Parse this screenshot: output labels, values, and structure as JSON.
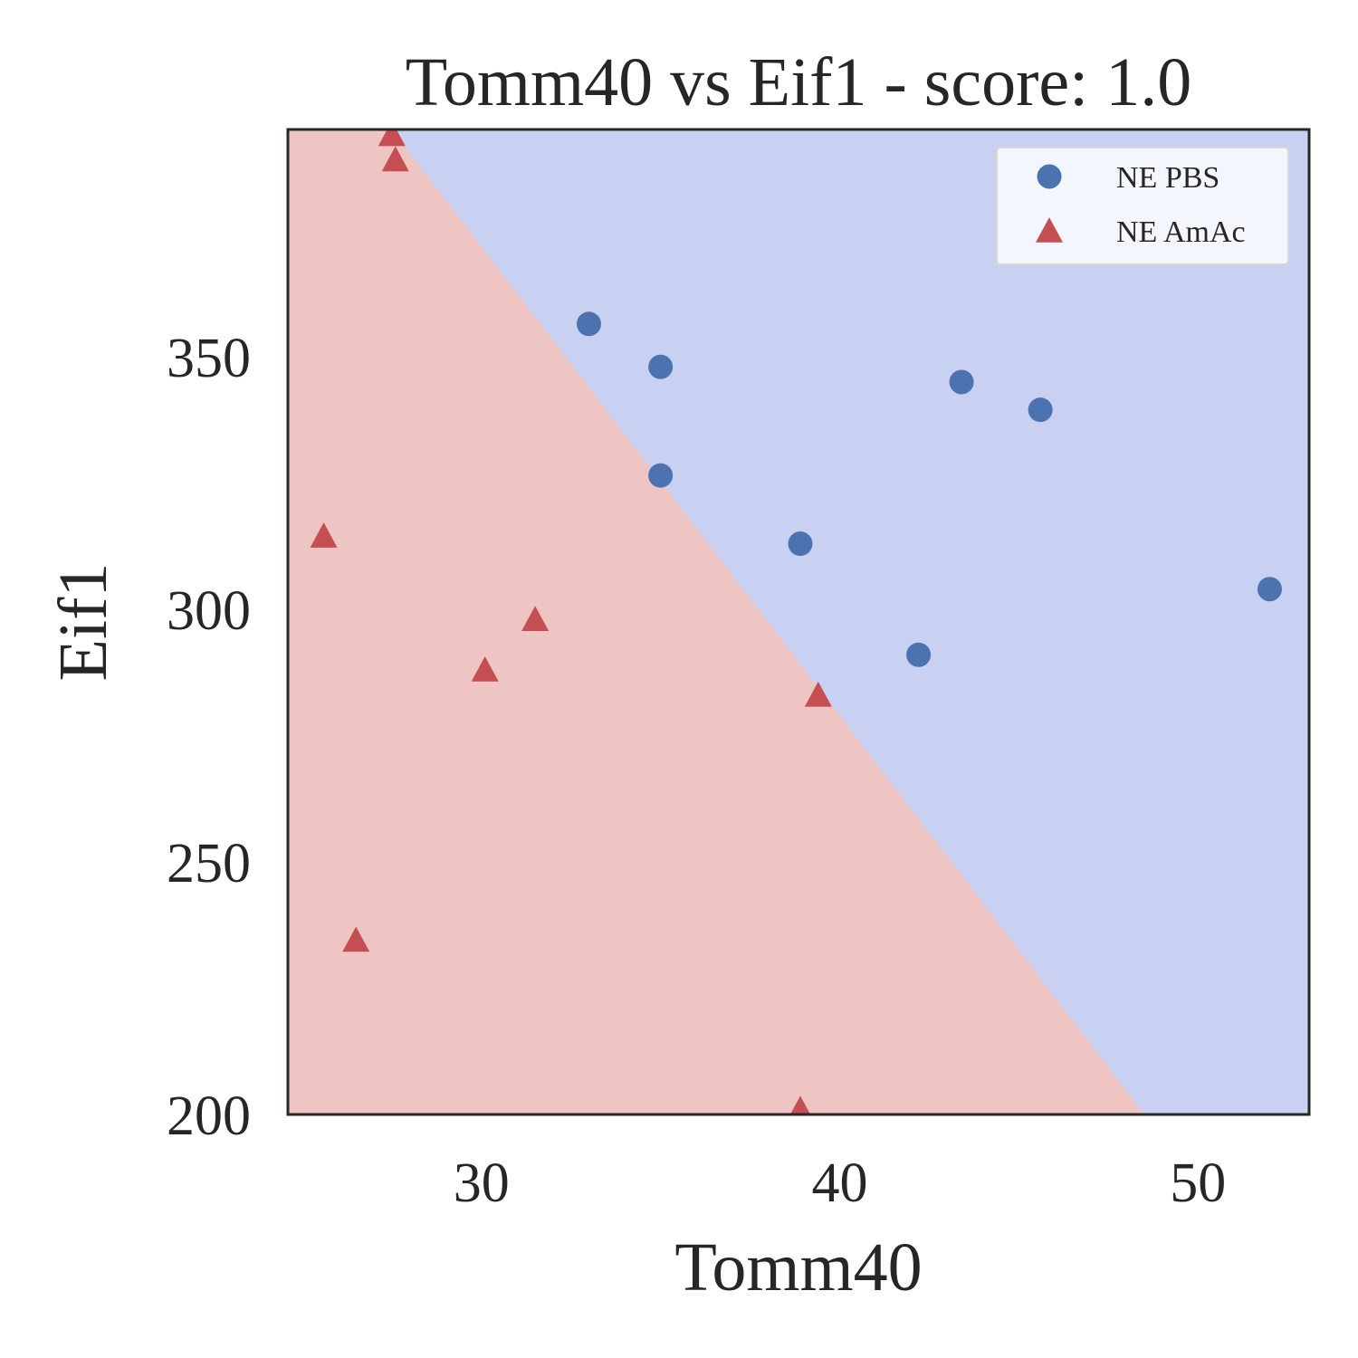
{
  "chart_data": {
    "type": "scatter",
    "title": "Tomm40 vs Eif1 - score: 1.0",
    "xlabel": "Tomm40",
    "ylabel": "Eif1",
    "xlim": [
      24.6,
      53.1
    ],
    "ylim": [
      200,
      395
    ],
    "x_ticks": [
      30,
      40,
      50
    ],
    "y_ticks": [
      200,
      250,
      300,
      350
    ],
    "grid": false,
    "legend_position": "top-right",
    "decision_boundary": {
      "points": [
        [
          27.5,
          395
        ],
        [
          48.5,
          200
        ]
      ],
      "region_colors": {
        "NE PBS": "#c9d1f2",
        "NE AmAc": "#efc5c4"
      }
    },
    "series": [
      {
        "name": "NE PBS",
        "marker": "circle",
        "color": "#4c72b0",
        "points": [
          {
            "x": 33.0,
            "y": 356.5
          },
          {
            "x": 35.0,
            "y": 348.0
          },
          {
            "x": 35.0,
            "y": 326.5
          },
          {
            "x": 38.9,
            "y": 313.0
          },
          {
            "x": 42.2,
            "y": 291.0
          },
          {
            "x": 43.4,
            "y": 345.0
          },
          {
            "x": 45.6,
            "y": 339.5
          },
          {
            "x": 52.0,
            "y": 304.0
          }
        ]
      },
      {
        "name": "NE AmAc",
        "marker": "triangle",
        "color": "#c44e52",
        "points": [
          {
            "x": 27.5,
            "y": 394.0
          },
          {
            "x": 27.6,
            "y": 389.0
          },
          {
            "x": 25.6,
            "y": 314.5
          },
          {
            "x": 31.5,
            "y": 298.0
          },
          {
            "x": 30.1,
            "y": 288.0
          },
          {
            "x": 39.4,
            "y": 283.0
          },
          {
            "x": 26.5,
            "y": 234.5
          },
          {
            "x": 38.9,
            "y": 201.0
          }
        ]
      }
    ]
  }
}
